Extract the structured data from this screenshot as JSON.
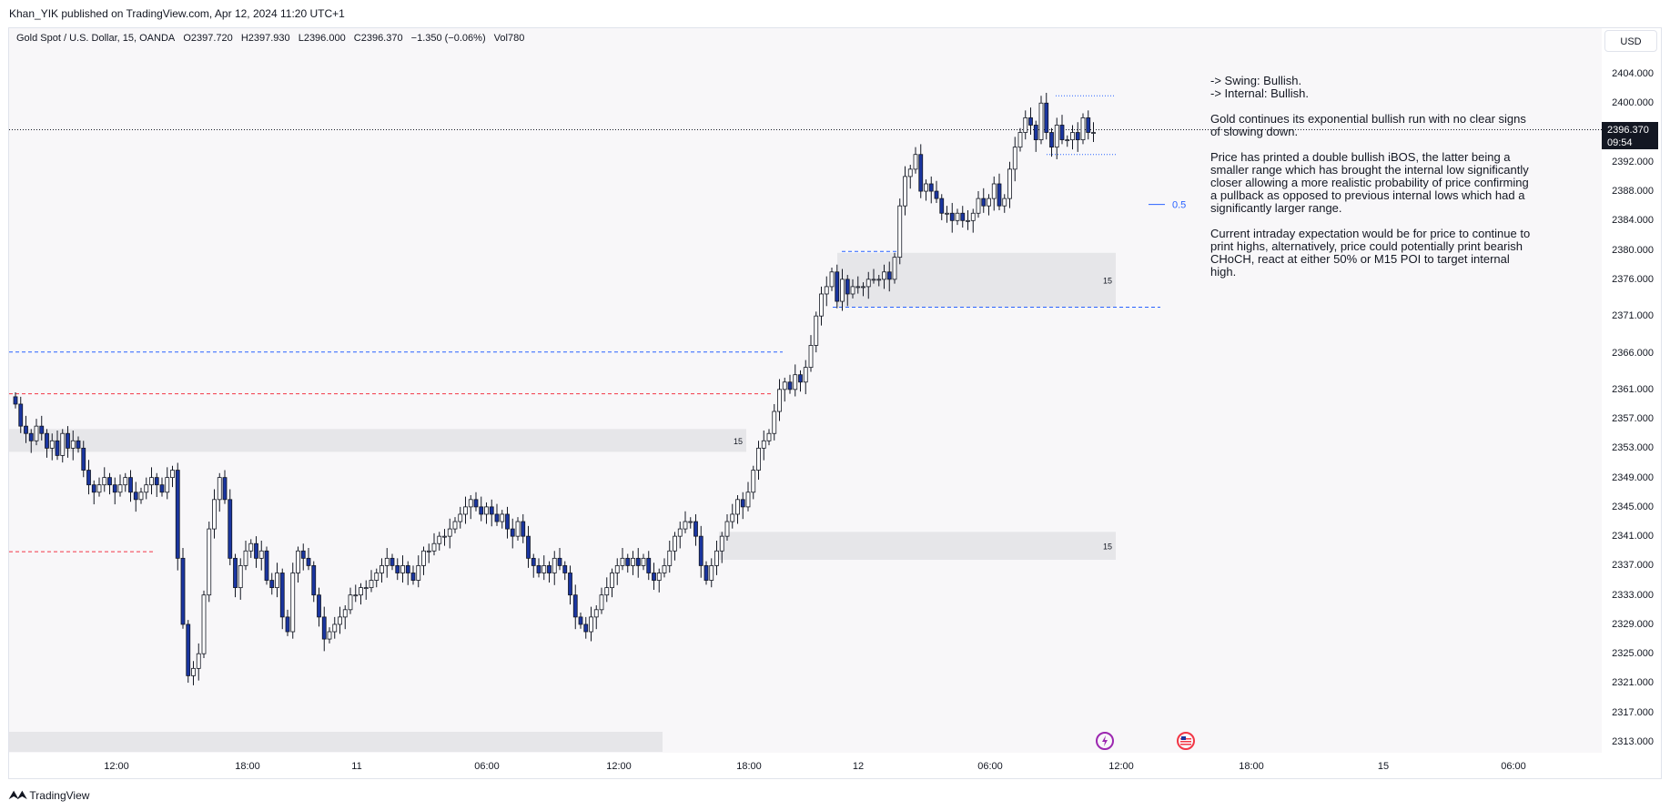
{
  "header": {
    "published": "Khan_YIK published on TradingView.com, Apr 12, 2024 11:20 UTC+1"
  },
  "legend": {
    "symbol": "Gold Spot / U.S. Dollar, 15, OANDA",
    "open": "O2397.720",
    "high": "H2397.930",
    "low": "L2396.000",
    "close": "C2396.370",
    "change": "−1.350 (−0.06%)",
    "volume": "Vol780"
  },
  "currency_button": "USD",
  "last_price": {
    "value": "2396.370",
    "countdown": "09:54"
  },
  "annotation": {
    "fib_label": "0.5",
    "zone_label_1": "15",
    "zone_label_2": "15",
    "zone_label_3": "15",
    "note": "-> Swing: Bullish.\n-> Internal: Bullish.\n\nGold continues its exponential bullish run with no clear signs of slowing down.\n\nPrice has printed a double bullish iBOS, the latter being a smaller range which has brought the internal low significantly closer allowing a more realistic probability of price confirming a pullback as opposed to previous internal lows which had a significantly larger range.\n\nCurrent intraday expectation would be for price to continue to print highs, alternatively, price could potentially print bearish CHoCH, react at either 50% or M15 POI to target internal high."
  },
  "footer": {
    "brand": "TradingView"
  },
  "colors": {
    "bull": "#ffffff",
    "bear": "#1a35a0",
    "wick": "#131722",
    "zone": "#e6e6e9",
    "blue_line": "#2962ff",
    "red_line": "#f23645"
  },
  "chart_data": {
    "type": "candlestick",
    "y_axis_ticks": [
      "2404.000",
      "2400.000",
      "2396.000",
      "2392.000",
      "2388.000",
      "2384.000",
      "2380.000",
      "2376.000",
      "2371.000",
      "2366.000",
      "2361.000",
      "2357.000",
      "2353.000",
      "2349.000",
      "2345.000",
      "2341.000",
      "2337.000",
      "2333.000",
      "2329.000",
      "2325.000",
      "2321.000",
      "2317.000",
      "2313.000"
    ],
    "x_axis_ticks": [
      "12:00",
      "18:00",
      "11",
      "06:00",
      "12:00",
      "18:00",
      "12",
      "06:00",
      "12:00",
      "18:00",
      "15",
      "06:00"
    ],
    "ylim": [
      2313,
      2404
    ],
    "closes": [
      2359,
      2356,
      2355,
      2354,
      2356,
      2355,
      2353,
      2354,
      2352,
      2355,
      2353,
      2354,
      2353,
      2350,
      2348,
      2347,
      2348,
      2349,
      2348,
      2347,
      2348,
      2349,
      2347,
      2346,
      2347,
      2348,
      2349,
      2348,
      2347,
      2349,
      2350,
      2338,
      2329,
      2322,
      2323,
      2325,
      2333,
      2342,
      2346,
      2349,
      2346,
      2338,
      2334,
      2337,
      2339,
      2340,
      2338,
      2339,
      2335,
      2334,
      2336,
      2330,
      2328,
      2336,
      2339,
      2338,
      2337,
      2333,
      2330,
      2327,
      2328,
      2329,
      2330,
      2331,
      2333,
      2333,
      2334,
      2334,
      2335,
      2336,
      2337,
      2338,
      2337,
      2336,
      2337,
      2336,
      2335,
      2337,
      2339,
      2339,
      2340,
      2341,
      2341,
      2342,
      2343,
      2344,
      2345,
      2346,
      2345,
      2344,
      2345,
      2344,
      2343,
      2344,
      2342,
      2341,
      2343,
      2341,
      2338,
      2337,
      2336,
      2337,
      2336,
      2338,
      2337,
      2336,
      2333,
      2330,
      2329,
      2328,
      2330,
      2331,
      2333,
      2334,
      2336,
      2337,
      2338,
      2337,
      2338,
      2337,
      2338,
      2336,
      2335,
      2336,
      2337,
      2339,
      2341,
      2342,
      2343,
      2343,
      2341,
      2337,
      2335,
      2337,
      2339,
      2341,
      2343,
      2344,
      2346,
      2345,
      2347,
      2350,
      2353,
      2354,
      2355,
      2358,
      2361,
      2362,
      2361,
      2363,
      2362,
      2364,
      2367,
      2371,
      2374,
      2375,
      2377,
      2373,
      2376,
      2374,
      2375,
      2375,
      2375,
      2376,
      2376,
      2376,
      2377,
      2376,
      2379,
      2386,
      2390,
      2391,
      2393,
      2388,
      2389,
      2388,
      2387,
      2385,
      2385,
      2384,
      2385,
      2384,
      2384,
      2385,
      2387,
      2386,
      2387,
      2389,
      2386,
      2387,
      2391,
      2394,
      2396,
      2398,
      2397,
      2395,
      2400,
      2396,
      2394,
      2397,
      2395,
      2395,
      2396,
      2395,
      2398,
      2396,
      2396
    ],
    "horizontal_levels": [
      {
        "price": 2366.1,
        "style": "dashed",
        "color": "blue"
      },
      {
        "price": 2360.4,
        "style": "dashed",
        "color": "red"
      },
      {
        "price": 2338.9,
        "style": "dashed",
        "color": "red"
      },
      {
        "price": 2372.2,
        "style": "dashed",
        "color": "blue"
      },
      {
        "price": 2379.8,
        "style": "dashed",
        "color": "blue"
      },
      {
        "price": 2401.0,
        "style": "dotted",
        "color": "blue"
      },
      {
        "price": 2393.0,
        "style": "dotted",
        "color": "blue"
      },
      {
        "price": 2396.37,
        "style": "dotted",
        "color": "black"
      }
    ],
    "zones": [
      {
        "from": 2352.5,
        "to": 2355.6,
        "label": "15"
      },
      {
        "from": 2372.2,
        "to": 2379.6,
        "label": "15"
      },
      {
        "from": 2337.8,
        "to": 2341.6,
        "label": "15"
      }
    ],
    "fib_level": {
      "label": "0.5",
      "price": 2386.2
    }
  }
}
